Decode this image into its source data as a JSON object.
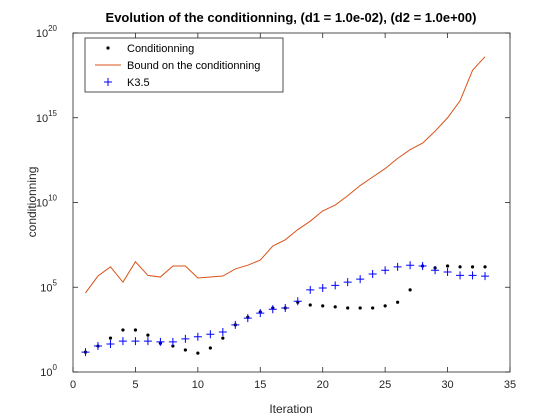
{
  "chart_data": {
    "type": "line",
    "title": "Evolution of the conditionning, (d1 = 1.0e-02), (d2 = 1.0e+00)",
    "xlabel": "Iteration",
    "ylabel": "conditionning",
    "x": [
      1,
      2,
      3,
      4,
      5,
      6,
      7,
      8,
      9,
      10,
      11,
      12,
      13,
      14,
      15,
      16,
      17,
      18,
      19,
      20,
      21,
      22,
      23,
      24,
      25,
      26,
      27,
      28,
      29,
      30,
      31,
      32,
      33
    ],
    "series": [
      {
        "name": "Conditionning",
        "color": "#000000",
        "marker": "dot",
        "line": false,
        "values": [
          15,
          34,
          100,
          300,
          300,
          150,
          50,
          34,
          20,
          13,
          26,
          100,
          600,
          1700,
          3500,
          6000,
          6000,
          13000,
          9000,
          8000,
          7000,
          6000,
          6000,
          6000,
          8000,
          13000,
          70000,
          1800000,
          1400000,
          1800000,
          1600000,
          1600000,
          1600000
        ]
      },
      {
        "name": "Bound on the conditionning",
        "color": "#d95319",
        "marker": "none",
        "line": true,
        "values": [
          46000.0,
          460000.0,
          1600000.0,
          200000.0,
          3200000.0,
          500000.0,
          400000.0,
          1800000.0,
          1800000.0,
          350000.0,
          400000.0,
          460000.0,
          1200000.0,
          2000000.0,
          4000000.0,
          27000000.0,
          63000000.0,
          250000000.0,
          790000000.0,
          3200000000.0,
          7100000000.0,
          25000000000.0,
          100000000000.0,
          320000000000.0,
          1000000000000.0,
          4000000000000.0,
          13000000000000.0,
          32000000000000.0,
          160000000000000.0,
          1000000000000000.0,
          1e+16,
          6.3e+17,
          4e+18
        ]
      },
      {
        "name": "K3.5",
        "color": "#0000ff",
        "marker": "plus",
        "line": false,
        "values": [
          15,
          34,
          45,
          66,
          66,
          66,
          60,
          60,
          90,
          120,
          170,
          230,
          600,
          1500,
          3000,
          5000,
          6000,
          15000,
          70000,
          90000,
          130000,
          200000,
          300000,
          600000,
          1000000,
          1600000,
          2000000,
          1800000,
          1000000,
          800000,
          500000,
          500000,
          450000
        ]
      }
    ],
    "xlim": [
      0,
      35
    ],
    "xticks": [
      0,
      5,
      10,
      15,
      20,
      25,
      30,
      35
    ],
    "ylim": [
      1,
      1e+20
    ],
    "yscale": "log",
    "yticks": [
      {
        "value": 1,
        "label": "10",
        "exponent": "0"
      },
      {
        "value": 100000.0,
        "label": "10",
        "exponent": "5"
      },
      {
        "value": 10000000000.0,
        "label": "10",
        "exponent": "10"
      },
      {
        "value": 1000000000000000.0,
        "label": "10",
        "exponent": "15"
      },
      {
        "value": 1e+20,
        "label": "10",
        "exponent": "20"
      }
    ],
    "grid": false,
    "legend": "northwest"
  }
}
